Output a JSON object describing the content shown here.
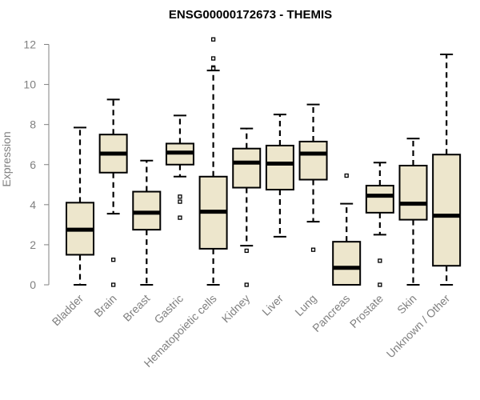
{
  "chart_data": {
    "type": "boxplot",
    "title": "ENSG00000172673 - THEMIS",
    "xlabel": "",
    "ylabel": "Expression",
    "ylim": [
      0,
      12.3
    ],
    "yticks": [
      0,
      2,
      4,
      6,
      8,
      10,
      12
    ],
    "grid": false,
    "colors": {
      "box_fill": "#ede6cc",
      "stroke": "#000000",
      "tick_text": "#808080"
    },
    "categories": [
      "Bladder",
      "Brain",
      "Breast",
      "Gastric",
      "Hematopoietic cells",
      "Kidney",
      "Liver",
      "Lung",
      "Pancreas",
      "Prostate",
      "Skin",
      "Unknown / Other"
    ],
    "boxes": [
      {
        "q1": 1.5,
        "median": 2.75,
        "q3": 4.1,
        "whisker_low": 0.0,
        "whisker_high": 7.85,
        "outliers": []
      },
      {
        "q1": 5.6,
        "median": 6.55,
        "q3": 7.5,
        "whisker_low": 3.55,
        "whisker_high": 9.25,
        "outliers": [
          1.25,
          0.0
        ]
      },
      {
        "q1": 2.75,
        "median": 3.6,
        "q3": 4.65,
        "whisker_low": 0.0,
        "whisker_high": 6.2,
        "outliers": []
      },
      {
        "q1": 6.0,
        "median": 6.6,
        "q3": 7.05,
        "whisker_low": 5.4,
        "whisker_high": 8.45,
        "outliers": [
          4.4,
          4.15,
          3.35
        ]
      },
      {
        "q1": 1.8,
        "median": 3.65,
        "q3": 5.4,
        "whisker_low": 0.0,
        "whisker_high": 10.7,
        "outliers": [
          12.25,
          11.3,
          10.85,
          10.8
        ]
      },
      {
        "q1": 4.85,
        "median": 6.1,
        "q3": 6.8,
        "whisker_low": 1.95,
        "whisker_high": 7.8,
        "outliers": [
          1.7,
          0.0
        ]
      },
      {
        "q1": 4.75,
        "median": 6.05,
        "q3": 6.95,
        "whisker_low": 2.4,
        "whisker_high": 8.5,
        "outliers": []
      },
      {
        "q1": 5.25,
        "median": 6.55,
        "q3": 7.15,
        "whisker_low": 3.15,
        "whisker_high": 9.0,
        "outliers": [
          1.75
        ]
      },
      {
        "q1": 0.0,
        "median": 0.85,
        "q3": 2.15,
        "whisker_low": 0.0,
        "whisker_high": 4.05,
        "outliers": [
          5.45
        ]
      },
      {
        "q1": 3.6,
        "median": 4.45,
        "q3": 4.95,
        "whisker_low": 2.5,
        "whisker_high": 6.1,
        "outliers": [
          1.2,
          0.0
        ]
      },
      {
        "q1": 3.25,
        "median": 4.05,
        "q3": 5.95,
        "whisker_low": 0.0,
        "whisker_high": 7.3,
        "outliers": []
      },
      {
        "q1": 0.95,
        "median": 3.45,
        "q3": 6.5,
        "whisker_low": 0.0,
        "whisker_high": 11.5,
        "outliers": []
      }
    ]
  }
}
